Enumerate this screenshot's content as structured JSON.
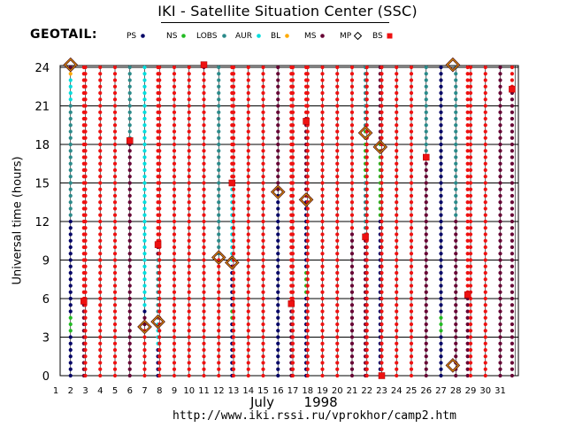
{
  "header": {
    "title": "IKI - Satellite Situation Center (SSC)",
    "mission": "GEOTAIL:",
    "url": "http://www.iki.rssi.ru/vprokhor/camp2.htm"
  },
  "legend": [
    {
      "label": "PS",
      "code": "PS",
      "color": "#000066",
      "symbol": "dot"
    },
    {
      "label": "NS",
      "code": "NS",
      "color": "#22bb22",
      "symbol": "dot"
    },
    {
      "label": "LOBS",
      "code": "LOBS",
      "color": "#2a8a8a",
      "symbol": "dot"
    },
    {
      "label": "AUR",
      "code": "AUR",
      "color": "#00dddd",
      "symbol": "dot"
    },
    {
      "label": "BL",
      "code": "BL",
      "color": "#ffaa00",
      "symbol": "dot"
    },
    {
      "label": "MS",
      "code": "MS",
      "color": "#660033",
      "symbol": "dot"
    },
    {
      "label": "MP",
      "code": "MP",
      "color": "#660033",
      "symbol": "diamond"
    },
    {
      "label": "BS",
      "code": "BS",
      "color": "#ee1111",
      "symbol": "square"
    }
  ],
  "chart_data": {
    "type": "scatter",
    "title": "IKI - Satellite Situation Center (SSC)",
    "ylabel": "Universal time  (hours)",
    "xlabel_month": "July",
    "xlabel_year": "1998",
    "x_ticks": [
      1,
      2,
      3,
      4,
      5,
      6,
      7,
      8,
      9,
      10,
      11,
      12,
      13,
      14,
      15,
      16,
      17,
      18,
      19,
      20,
      21,
      22,
      23,
      24,
      25,
      26,
      27,
      28,
      29,
      30,
      31
    ],
    "y_ticks": [
      0,
      3,
      6,
      9,
      12,
      15,
      18,
      21,
      24
    ],
    "xlim": [
      1,
      32
    ],
    "ylim": [
      0,
      24
    ],
    "dot_step_hours": 0.5,
    "default_region": "SW",
    "colors": {
      "SW": "#ee1111",
      "PS": "#000066",
      "NS": "#22bb22",
      "LOBS": "#2a8a8a",
      "AUR": "#00dddd",
      "BL": "#ffaa00",
      "MS": "#660033"
    },
    "columns": [
      {
        "day": 2,
        "segments": [
          [
            "PS",
            0,
            3
          ],
          [
            "NS",
            3,
            4.5
          ],
          [
            "PS",
            4.5,
            12
          ],
          [
            "LOBS",
            12,
            21
          ],
          [
            "AUR",
            21,
            23
          ],
          [
            "BL",
            23,
            23.5
          ],
          [
            "MS",
            23.5,
            24
          ]
        ]
      },
      {
        "day": 2.9,
        "segments": [
          [
            "MS",
            0,
            5.8
          ]
        ]
      },
      {
        "day": 6,
        "segments": [
          [
            "MS",
            0,
            18.3
          ],
          [
            "LOBS",
            18.3,
            24
          ]
        ]
      },
      {
        "day": 7,
        "segments": [
          [
            "MS",
            3.8,
            4.5
          ],
          [
            "PS",
            4.5,
            5
          ],
          [
            "AUR",
            5,
            24
          ]
        ]
      },
      {
        "day": 7.9,
        "segments": [
          [
            "PS",
            0,
            2
          ],
          [
            "AUR",
            2,
            4
          ],
          [
            "LOBS",
            4,
            9
          ],
          [
            "MS",
            9,
            10.2
          ]
        ]
      },
      {
        "day": 11,
        "segments": [
          [
            "MS",
            24,
            24
          ]
        ]
      },
      {
        "day": 12,
        "segments": [
          [
            "LOBS",
            9.2,
            24
          ]
        ]
      },
      {
        "day": 12.9,
        "segments": [
          [
            "PS",
            0,
            4
          ],
          [
            "NS",
            4,
            5
          ],
          [
            "PS",
            5,
            8.8
          ],
          [
            "AUR",
            8.8,
            15
          ]
        ]
      },
      {
        "day": 16,
        "segments": [
          [
            "PS",
            0,
            14.3
          ],
          [
            "MS",
            14.3,
            24
          ]
        ]
      },
      {
        "day": 16.9,
        "segments": [
          [
            "MS",
            0,
            5.6
          ]
        ]
      },
      {
        "day": 17.9,
        "segments": [
          [
            "PS",
            0,
            6
          ],
          [
            "NS",
            6,
            8
          ],
          [
            "PS",
            8,
            13.7
          ],
          [
            "MS",
            13.7,
            20
          ]
        ]
      },
      {
        "day": 21,
        "segments": [
          [
            "MS",
            0,
            11
          ]
        ]
      },
      {
        "day": 21.9,
        "segments": [
          [
            "MS",
            0,
            10.8
          ],
          [
            "LOBS",
            10.8,
            15
          ],
          [
            "NS",
            15,
            19
          ],
          [
            "LOBS",
            19,
            24
          ]
        ]
      },
      {
        "day": 22.9,
        "segments": [
          [
            "PS",
            0,
            12
          ],
          [
            "NS",
            12,
            18
          ],
          [
            "MS",
            18,
            24
          ]
        ]
      },
      {
        "day": 26,
        "segments": [
          [
            "MS",
            0,
            17
          ],
          [
            "LOBS",
            17,
            24
          ]
        ]
      },
      {
        "day": 27,
        "segments": [
          [
            "PS",
            0,
            3
          ],
          [
            "NS",
            3,
            4.5
          ],
          [
            "PS",
            4.5,
            24
          ]
        ]
      },
      {
        "day": 28,
        "segments": [
          [
            "MS",
            0,
            12
          ],
          [
            "LOBS",
            12,
            24
          ]
        ]
      },
      {
        "day": 28.8,
        "segments": [
          [
            "MS",
            0,
            6.3
          ]
        ]
      },
      {
        "day": 31,
        "segments": [
          [
            "MS",
            0,
            24
          ]
        ]
      },
      {
        "day": 31.8,
        "segments": [
          [
            "MS",
            0,
            22.3
          ]
        ]
      }
    ],
    "mp_crossings": [
      {
        "day": 2,
        "hour": 24.2
      },
      {
        "day": 7,
        "hour": 3.8
      },
      {
        "day": 7.9,
        "hour": 4.2
      },
      {
        "day": 12,
        "hour": 9.2
      },
      {
        "day": 12.9,
        "hour": 8.8
      },
      {
        "day": 16,
        "hour": 14.3
      },
      {
        "day": 17.9,
        "hour": 13.7
      },
      {
        "day": 21.9,
        "hour": 18.9
      },
      {
        "day": 22.9,
        "hour": 17.8
      },
      {
        "day": 27.8,
        "hour": 24.2
      },
      {
        "day": 27.8,
        "hour": 0.8
      }
    ],
    "bs_crossings": [
      {
        "day": 2.9,
        "hour": 5.8
      },
      {
        "day": 6,
        "hour": 18.3
      },
      {
        "day": 7.9,
        "hour": 10.2
      },
      {
        "day": 11,
        "hour": 24.2
      },
      {
        "day": 12.9,
        "hour": 15
      },
      {
        "day": 16.9,
        "hour": 5.6
      },
      {
        "day": 17.9,
        "hour": 19.8
      },
      {
        "day": 21.9,
        "hour": 10.8
      },
      {
        "day": 23,
        "hour": 0
      },
      {
        "day": 26,
        "hour": 17
      },
      {
        "day": 28.8,
        "hour": 6.3
      },
      {
        "day": 31.8,
        "hour": 22.3
      }
    ]
  }
}
